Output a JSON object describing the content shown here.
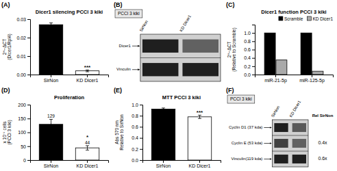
{
  "chart_data": [
    {
      "type": "bar",
      "panel": "(A)",
      "title": "Dicer1 silencing PCCl 3 kiki",
      "ylabel": "2^−ΔCT\n(Dicer1/Rpl4)",
      "categories": [
        "SirNon",
        "KD Dicer1"
      ],
      "values": [
        0.027,
        0.002
      ],
      "errors": [
        0.001,
        0.0005
      ],
      "colors": [
        "black",
        "white"
      ],
      "edgecolor": "black",
      "ylim": [
        0,
        0.03
      ],
      "yticks": [
        {
          "value": 0,
          "label": "0.00"
        },
        0.01,
        0.02,
        0.03
      ],
      "annotations": [
        null,
        "***"
      ]
    },
    {
      "type": "heatmap",
      "panel": "(B)",
      "categories": [
        "SirNon",
        "KD Dicer1"
      ],
      "rows": [
        "Dicer1",
        "Vinculin"
      ],
      "cells": [
        [
          0.12,
          0.38
        ],
        [
          0.12,
          0.12
        ]
      ],
      "clim": [
        0,
        1
      ],
      "annotations": [
        "PCCl 3  kiki"
      ]
    },
    {
      "type": "bar",
      "panel": "(C)",
      "title": "Dicer1 function PCCl 3 kiki",
      "ylabel": "2^−ΔCT\n(Relative to Scramble)",
      "categories": [
        "miR-21-5p",
        "miR-125-5p"
      ],
      "series": [
        {
          "name": "Scramble",
          "color": "black",
          "values": [
            1.0,
            1.0
          ]
        },
        {
          "name": "KD Dicer1",
          "color": "#aaaaaa",
          "values": [
            0.35,
            0.08
          ]
        }
      ],
      "edgecolor": "black",
      "ylim": [
        0,
        1.2
      ],
      "yticks": [
        {
          "value": 0,
          "label": "0.0"
        },
        0.2,
        0.4,
        0.6,
        0.8,
        {
          "value": 1,
          "label": "1.0"
        }
      ],
      "legend": "upper right"
    },
    {
      "type": "bar",
      "panel": "(D)",
      "title": "Proliferation",
      "ylabel": "x 10⁻⁴ cells\n(PCCl 3 kiki)",
      "categories": [
        "SirNon",
        "KD Dicer1"
      ],
      "values": [
        129,
        44
      ],
      "errors": [
        18,
        8
      ],
      "colors": [
        "black",
        "white"
      ],
      "edgecolor": "black",
      "ylim": [
        0,
        200
      ],
      "yticks": [
        0,
        50,
        100,
        150,
        200
      ],
      "data_labels": true,
      "annotations": [
        null,
        "*"
      ]
    },
    {
      "type": "bar",
      "panel": "(E)",
      "title": "MTT PCCl 3 kiki",
      "ylabel": "Abs 570 nm\nRelative to SirNon",
      "categories": [
        "SirNon",
        "KD Dicer1"
      ],
      "values": [
        0.92,
        0.78
      ],
      "errors": [
        0.02,
        0.03
      ],
      "colors": [
        "black",
        "white"
      ],
      "edgecolor": "black",
      "ylim": [
        0.0,
        1.0
      ],
      "yticks": [
        {
          "value": 0,
          "label": "0.0"
        },
        0.2,
        0.4,
        0.6,
        0.8,
        {
          "value": 1,
          "label": "1.0"
        }
      ],
      "annotations": [
        null,
        "***"
      ]
    },
    {
      "type": "heatmap",
      "panel": "(F)",
      "categories": [
        "SirNon",
        "KD Dicer1"
      ],
      "rows": [
        "Cyclin D1 (37 kda)",
        "Cyclin E (53 kda)",
        "Vinculin(119 kda)"
      ],
      "cells": [
        [
          0.12,
          0.35
        ],
        [
          0.25,
          0.38
        ],
        [
          0.12,
          0.12
        ]
      ],
      "clim": [
        0,
        1
      ],
      "annotations": [
        "PCCl 3  kiki"
      ],
      "side_title": "Rel SirNon",
      "side_labels": [
        null,
        "0.4x",
        "0.6x"
      ]
    }
  ]
}
